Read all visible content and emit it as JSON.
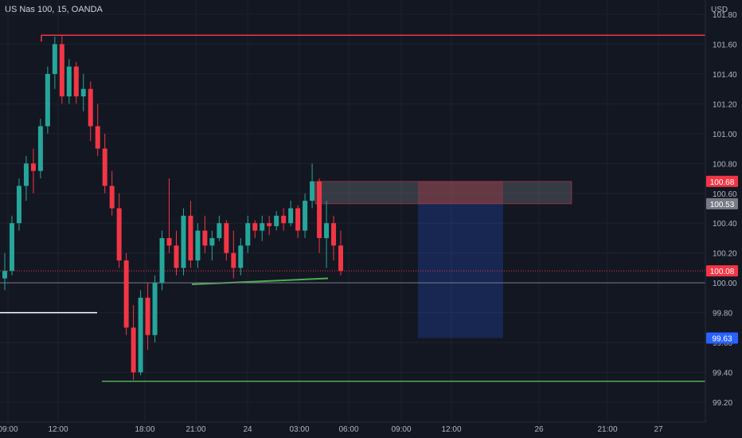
{
  "header": {
    "symbol": "US Nas 100, 15, OANDA"
  },
  "colors": {
    "background": "#131722",
    "grid": "#1e222d",
    "up": "#26a69a",
    "down": "#f23645",
    "text": "#b2b5be",
    "resistance": "#f23645",
    "support": "#4caf50",
    "neutral": "#d1d4dc",
    "stop_zone": "rgba(242,54,69,0.25)",
    "target_zone": "rgba(41,98,255,0.22)",
    "entry_zone": "rgba(120,123,134,0.35)"
  },
  "chart_data": {
    "type": "candlestick",
    "currency": "USD",
    "y_ticks": [
      "101.80",
      "101.60",
      "101.40",
      "101.20",
      "101.00",
      "100.80",
      "100.60",
      "100.40",
      "100.20",
      "100.00",
      "99.80",
      "99.60",
      "99.40",
      "99.20"
    ],
    "x_ticks": [
      "09:00",
      "12:00",
      "18:00",
      "21:00",
      "24",
      "03:00",
      "06:00",
      "09:00",
      "12:00",
      "26",
      "21:00",
      "27"
    ],
    "ylim": [
      99.15,
      101.85
    ],
    "price_labels": {
      "stop": "100.68",
      "entry": "100.53",
      "current": "100.08",
      "target": "99.63",
      "level_100": "100.00"
    },
    "levels": {
      "resistance": 101.66,
      "support_low": 99.34,
      "support_mid": 100.03,
      "old_level": 99.8,
      "current": 100.08,
      "level_100": 100.0
    },
    "candles": [
      [
        100.03,
        100.2,
        99.95,
        100.08
      ],
      [
        100.08,
        100.45,
        100.05,
        100.4
      ],
      [
        100.4,
        100.7,
        100.35,
        100.65
      ],
      [
        100.65,
        100.85,
        100.55,
        100.8
      ],
      [
        100.8,
        100.9,
        100.6,
        100.75
      ],
      [
        100.75,
        101.1,
        100.7,
        101.05
      ],
      [
        101.05,
        101.45,
        101.0,
        101.4
      ],
      [
        101.4,
        101.65,
        101.3,
        101.6
      ],
      [
        101.6,
        101.66,
        101.2,
        101.25
      ],
      [
        101.25,
        101.5,
        101.2,
        101.45
      ],
      [
        101.45,
        101.48,
        101.2,
        101.25
      ],
      [
        101.25,
        101.4,
        101.15,
        101.3
      ],
      [
        101.3,
        101.35,
        100.95,
        101.05
      ],
      [
        101.05,
        101.2,
        100.85,
        100.9
      ],
      [
        100.9,
        101.0,
        100.6,
        100.65
      ],
      [
        100.65,
        100.75,
        100.45,
        100.5
      ],
      [
        100.5,
        100.6,
        100.1,
        100.15
      ],
      [
        100.15,
        100.2,
        99.65,
        99.7
      ],
      [
        99.7,
        99.85,
        99.35,
        99.4
      ],
      [
        99.4,
        99.95,
        99.38,
        99.9
      ],
      [
        99.9,
        100.0,
        99.55,
        99.65
      ],
      [
        99.65,
        100.05,
        99.6,
        100.0
      ],
      [
        100.0,
        100.35,
        99.95,
        100.3
      ],
      [
        100.3,
        100.7,
        100.2,
        100.25
      ],
      [
        100.25,
        100.35,
        100.05,
        100.1
      ],
      [
        100.1,
        100.5,
        100.05,
        100.45
      ],
      [
        100.45,
        100.55,
        100.1,
        100.15
      ],
      [
        100.15,
        100.4,
        100.1,
        100.35
      ],
      [
        100.35,
        100.45,
        100.2,
        100.25
      ],
      [
        100.25,
        100.35,
        100.15,
        100.3
      ],
      [
        100.3,
        100.45,
        100.28,
        100.4
      ],
      [
        100.4,
        100.42,
        100.15,
        100.2
      ],
      [
        100.2,
        100.35,
        100.03,
        100.1
      ],
      [
        100.1,
        100.3,
        100.05,
        100.25
      ],
      [
        100.25,
        100.45,
        100.2,
        100.4
      ],
      [
        100.4,
        100.42,
        100.3,
        100.35
      ],
      [
        100.35,
        100.45,
        100.28,
        100.4
      ],
      [
        100.4,
        100.45,
        100.32,
        100.38
      ],
      [
        100.38,
        100.48,
        100.35,
        100.45
      ],
      [
        100.45,
        100.5,
        100.35,
        100.4
      ],
      [
        100.4,
        100.55,
        100.38,
        100.5
      ],
      [
        100.5,
        100.52,
        100.3,
        100.35
      ],
      [
        100.35,
        100.6,
        100.3,
        100.55
      ],
      [
        100.55,
        100.8,
        100.5,
        100.68
      ],
      [
        100.68,
        100.7,
        100.2,
        100.3
      ],
      [
        100.3,
        100.55,
        100.1,
        100.4
      ],
      [
        100.4,
        100.45,
        100.15,
        100.25
      ],
      [
        100.25,
        100.35,
        100.05,
        100.08
      ]
    ]
  }
}
